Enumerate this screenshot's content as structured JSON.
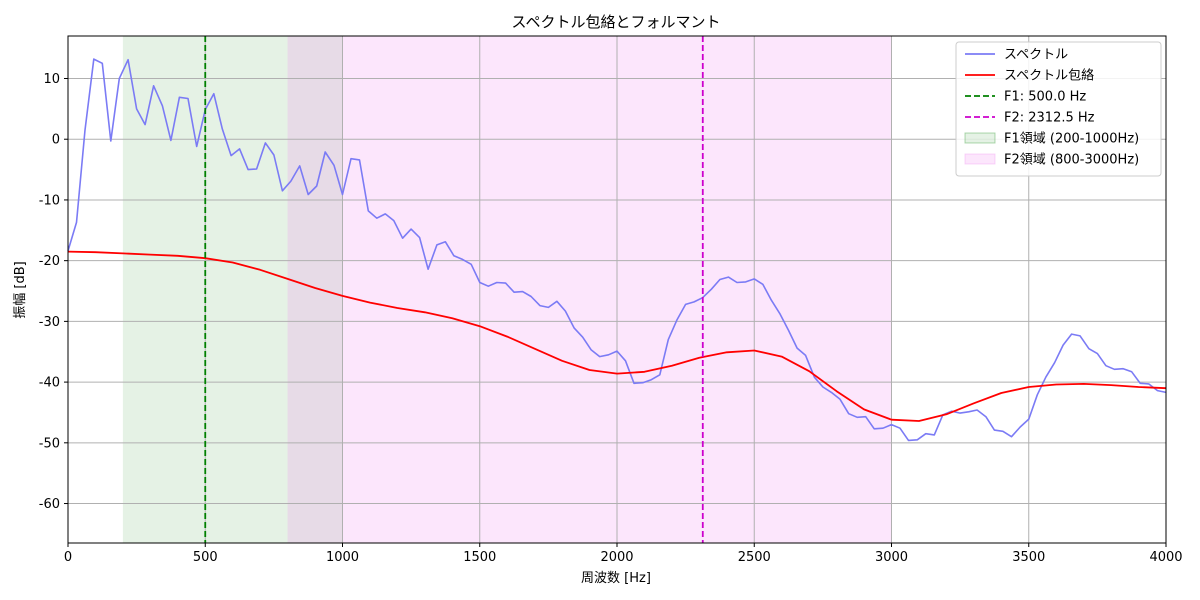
{
  "chart_data": {
    "type": "line",
    "title": "スペクトル包絡とフォルマント",
    "xlabel": "周波数 [Hz]",
    "ylabel": "振幅 [dB]",
    "xlim": [
      0,
      4000
    ],
    "ylim": [
      -66.5,
      17
    ],
    "x_ticks": [
      0,
      500,
      1000,
      1500,
      2000,
      2500,
      3000,
      3500,
      4000
    ],
    "y_ticks": [
      -60,
      -50,
      -40,
      -30,
      -20,
      -10,
      0,
      10
    ],
    "grid": true,
    "legend_position": "top-right",
    "series": [
      {
        "name": "スペクトル",
        "color": "#7b7bf5",
        "style": "solid",
        "x": [
          0,
          31,
          62,
          94,
          125,
          156,
          187,
          219,
          250,
          281,
          312,
          344,
          375,
          406,
          437,
          469,
          500,
          531,
          562,
          594,
          625,
          656,
          687,
          719,
          750,
          781,
          812,
          844,
          875,
          906,
          937,
          969,
          1000,
          1031,
          1062,
          1094,
          1125,
          1156,
          1187,
          1219,
          1250,
          1281,
          1312,
          1344,
          1375,
          1406,
          1437,
          1469,
          1500,
          1531,
          1562,
          1594,
          1625,
          1656,
          1687,
          1719,
          1750,
          1781,
          1812,
          1844,
          1875,
          1906,
          1937,
          1969,
          2000,
          2031,
          2062,
          2094,
          2125,
          2156,
          2187,
          2219,
          2250,
          2281,
          2312,
          2344,
          2375,
          2406,
          2437,
          2469,
          2500,
          2531,
          2562,
          2594,
          2625,
          2656,
          2687,
          2719,
          2750,
          2781,
          2812,
          2844,
          2875,
          2906,
          2937,
          2969,
          3000,
          3031,
          3062,
          3094,
          3125,
          3156,
          3187,
          3219,
          3250,
          3281,
          3312,
          3344,
          3375,
          3406,
          3437,
          3469,
          3500,
          3531,
          3562,
          3594,
          3625,
          3656,
          3687,
          3719,
          3750,
          3781,
          3812,
          3844,
          3875,
          3906,
          3937,
          3969,
          4000
        ],
        "y": [
          -18.4,
          -13.7,
          1.5,
          13.2,
          12.5,
          -0.3,
          10.0,
          13.1,
          5.0,
          2.4,
          8.8,
          5.5,
          -0.2,
          6.9,
          6.7,
          -1.2,
          4.9,
          7.5,
          1.7,
          -2.7,
          -1.6,
          -5.0,
          -4.9,
          -0.6,
          -2.6,
          -8.5,
          -6.9,
          -4.4,
          -9.1,
          -7.7,
          -2.1,
          -4.3,
          -9.1,
          -3.2,
          -3.4,
          -11.8,
          -13.0,
          -12.3,
          -13.4,
          -16.3,
          -14.8,
          -16.2,
          -21.4,
          -17.4,
          -16.9,
          -19.2,
          -19.8,
          -20.6,
          -23.6,
          -24.2,
          -23.6,
          -23.7,
          -25.2,
          -25.1,
          -25.9,
          -27.4,
          -27.7,
          -26.7,
          -28.3,
          -31.1,
          -32.6,
          -34.7,
          -35.8,
          -35.5,
          -34.9,
          -36.5,
          -40.2,
          -40.1,
          -39.6,
          -38.8,
          -33.0,
          -29.7,
          -27.2,
          -26.8,
          -26.1,
          -24.7,
          -23.1,
          -22.7,
          -23.6,
          -23.5,
          -23.0,
          -23.9,
          -26.5,
          -28.8,
          -31.5,
          -34.4,
          -35.6,
          -39.2,
          -40.8,
          -41.7,
          -42.8,
          -45.2,
          -45.8,
          -45.7,
          -47.7,
          -47.6,
          -47.0,
          -47.6,
          -49.6,
          -49.5,
          -48.5,
          -48.7,
          -45.4,
          -44.8,
          -45.1,
          -44.9,
          -44.6,
          -45.7,
          -47.9,
          -48.1,
          -49.0,
          -47.4,
          -46.1,
          -42.1,
          -39.2,
          -36.8,
          -33.9,
          -32.1,
          -32.4,
          -34.5,
          -35.3,
          -37.3,
          -37.9,
          -37.8,
          -38.3,
          -40.2,
          -40.3,
          -41.4,
          -41.7
        ]
      },
      {
        "name": "スペクトル包絡",
        "color": "#ff0000",
        "style": "solid",
        "x": [
          0,
          100,
          200,
          300,
          400,
          500,
          600,
          700,
          800,
          900,
          1000,
          1100,
          1200,
          1300,
          1400,
          1500,
          1600,
          1700,
          1800,
          1900,
          2000,
          2100,
          2200,
          2300,
          2400,
          2500,
          2600,
          2700,
          2800,
          2900,
          3000,
          3100,
          3200,
          3300,
          3400,
          3500,
          3600,
          3700,
          3800,
          3900,
          4000
        ],
        "y": [
          -18.5,
          -18.6,
          -18.8,
          -19.0,
          -19.2,
          -19.6,
          -20.3,
          -21.5,
          -23.0,
          -24.5,
          -25.8,
          -26.9,
          -27.8,
          -28.5,
          -29.5,
          -30.8,
          -32.5,
          -34.5,
          -36.5,
          -38.0,
          -38.6,
          -38.3,
          -37.3,
          -36.0,
          -35.1,
          -34.8,
          -35.8,
          -38.2,
          -41.5,
          -44.5,
          -46.2,
          -46.4,
          -45.3,
          -43.5,
          -41.8,
          -40.8,
          -40.4,
          -40.3,
          -40.5,
          -40.8,
          -41.0
        ]
      }
    ],
    "vlines": [
      {
        "name": "F1: 500.0 Hz",
        "x": 500,
        "color": "#008000",
        "style": "dashed"
      },
      {
        "name": "F2: 2312.5 Hz",
        "x": 2312.5,
        "color": "#cc00cc",
        "style": "dashed"
      }
    ],
    "spans": [
      {
        "name": "F1領域 (200-1000Hz)",
        "x0": 200,
        "x1": 1000,
        "color": "#008000",
        "alpha": 0.1
      },
      {
        "name": "F2領域 (800-3000Hz)",
        "x0": 800,
        "x1": 3000,
        "color": "#ee82ee",
        "alpha": 0.2
      }
    ]
  }
}
